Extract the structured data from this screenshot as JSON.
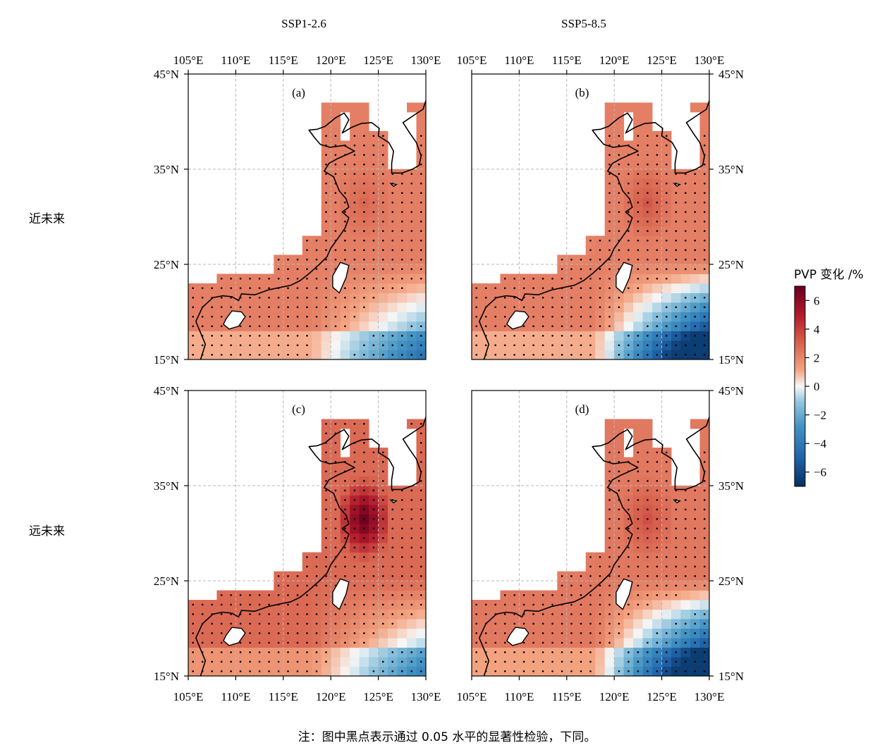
{
  "columns": [
    "SSP1-2.6",
    "SSP5-8.5"
  ],
  "rows": [
    "近未来",
    "远未来"
  ],
  "panels": [
    {
      "label": "(a)",
      "scenario": "SSP1-2.6",
      "period": "近未来"
    },
    {
      "label": "(b)",
      "scenario": "SSP5-8.5",
      "period": "近未来"
    },
    {
      "label": "(c)",
      "scenario": "SSP1-2.6",
      "period": "远未来"
    },
    {
      "label": "(d)",
      "scenario": "SSP5-8.5",
      "period": "远未来"
    }
  ],
  "lon_ticks": [
    "105°E",
    "110°E",
    "115°E",
    "120°E",
    "125°E",
    "130°E"
  ],
  "lat_ticks": [
    "45°N",
    "35°N",
    "25°N",
    "15°N"
  ],
  "colorbar": {
    "title": "PVP 变化 /%",
    "ticks": [
      "6",
      "4",
      "2",
      "0",
      "−2",
      "−4",
      "−6"
    ],
    "range": [
      -7,
      7
    ],
    "colors": {
      "max": "#67001f",
      "high": "#d6604d",
      "mid_high": "#f4a582",
      "zero": "#f7f7f7",
      "mid_low": "#92c5de",
      "low": "#4393c3",
      "min": "#053061"
    }
  },
  "note": "注：图中黑点表示通过 0.05 水平的显著性检验，下同。"
}
